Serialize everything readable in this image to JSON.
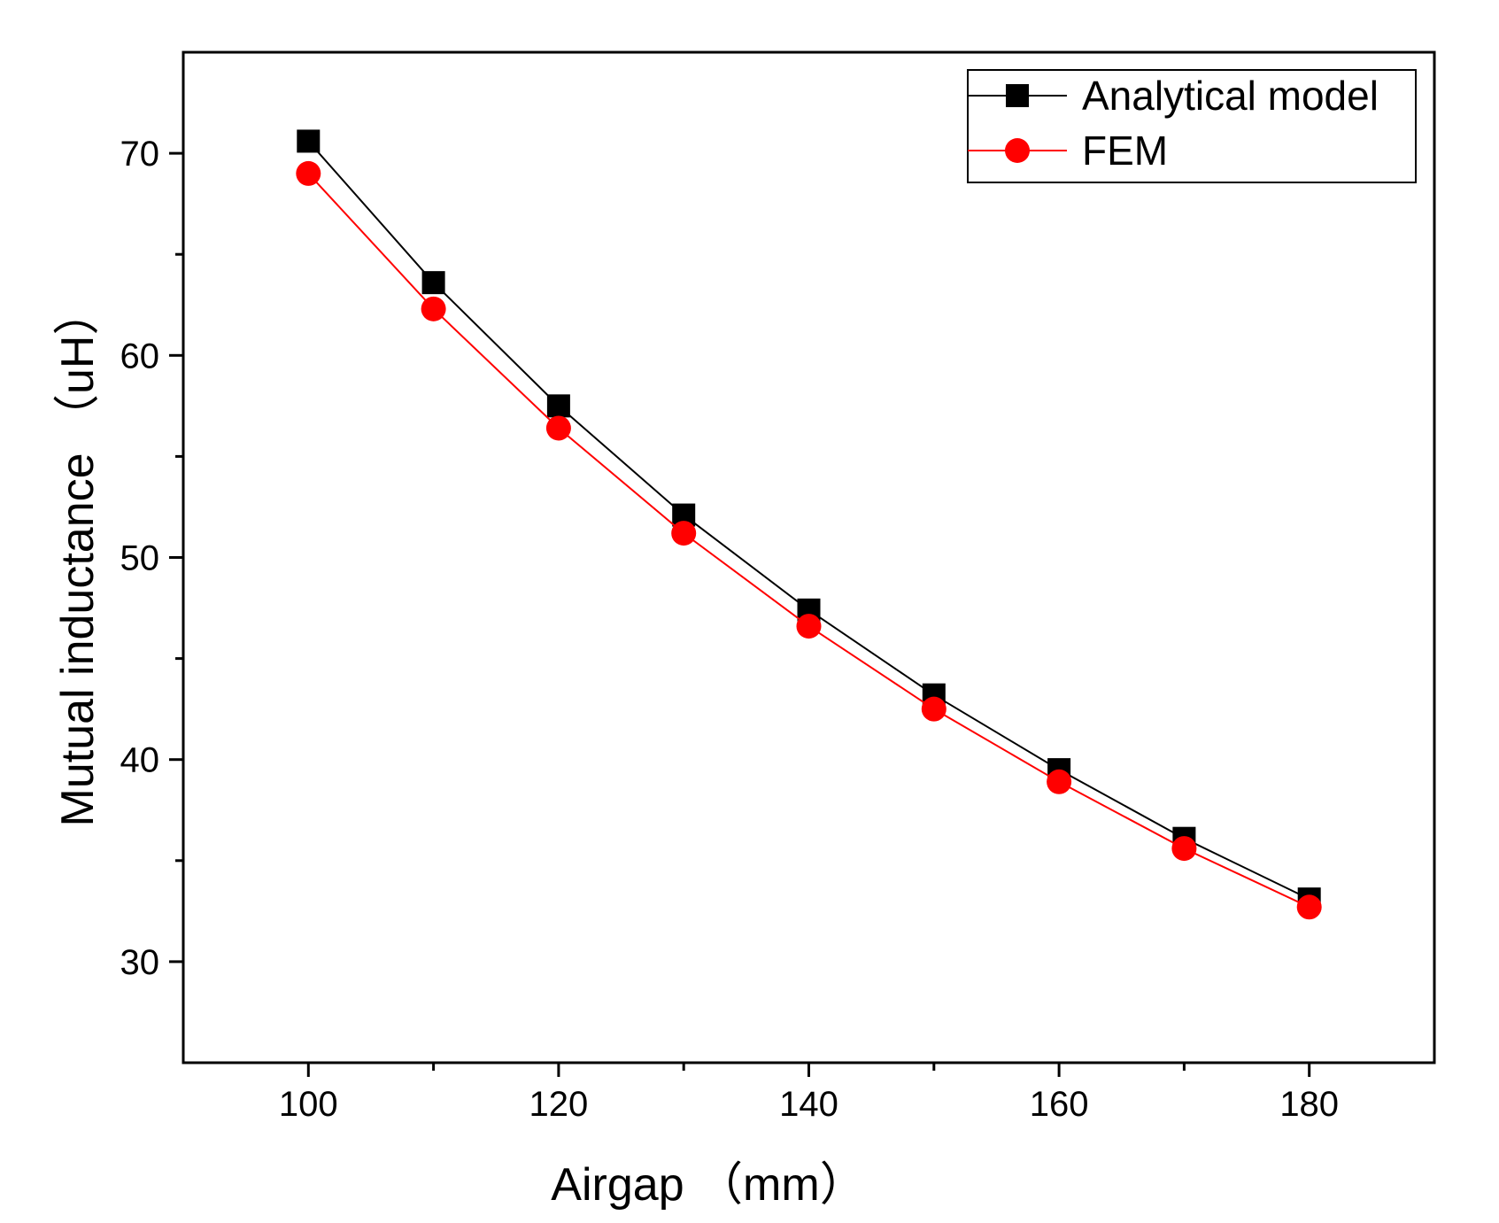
{
  "chart_data": {
    "type": "line",
    "title": "",
    "xlabel": "Airgap （mm）",
    "ylabel": "Mutual inductance （uH）",
    "xlim": [
      90,
      190
    ],
    "ylim": [
      25,
      75
    ],
    "x_ticks": [
      100,
      120,
      140,
      160,
      180
    ],
    "x_tick_labels": [
      "100",
      "120",
      "140",
      "160",
      "180"
    ],
    "x_minor_ticks": [
      110,
      130,
      150,
      170
    ],
    "y_ticks": [
      30,
      40,
      50,
      60,
      70
    ],
    "y_tick_labels": [
      "30",
      "40",
      "50",
      "60",
      "70"
    ],
    "y_minor_ticks": [
      35,
      45,
      55,
      65
    ],
    "grid": false,
    "legend_position": "top-right",
    "x": [
      100,
      110,
      120,
      130,
      140,
      150,
      160,
      170,
      180
    ],
    "series": [
      {
        "name": "Analytical model",
        "color": "#000000",
        "marker": "square",
        "values": [
          70.6,
          63.6,
          57.5,
          52.1,
          47.4,
          43.2,
          39.5,
          36.1,
          33.1
        ]
      },
      {
        "name": "FEM",
        "color": "#ff0000",
        "marker": "circle",
        "values": [
          69.0,
          62.3,
          56.4,
          51.2,
          46.6,
          42.5,
          38.9,
          35.6,
          32.7
        ]
      }
    ]
  }
}
